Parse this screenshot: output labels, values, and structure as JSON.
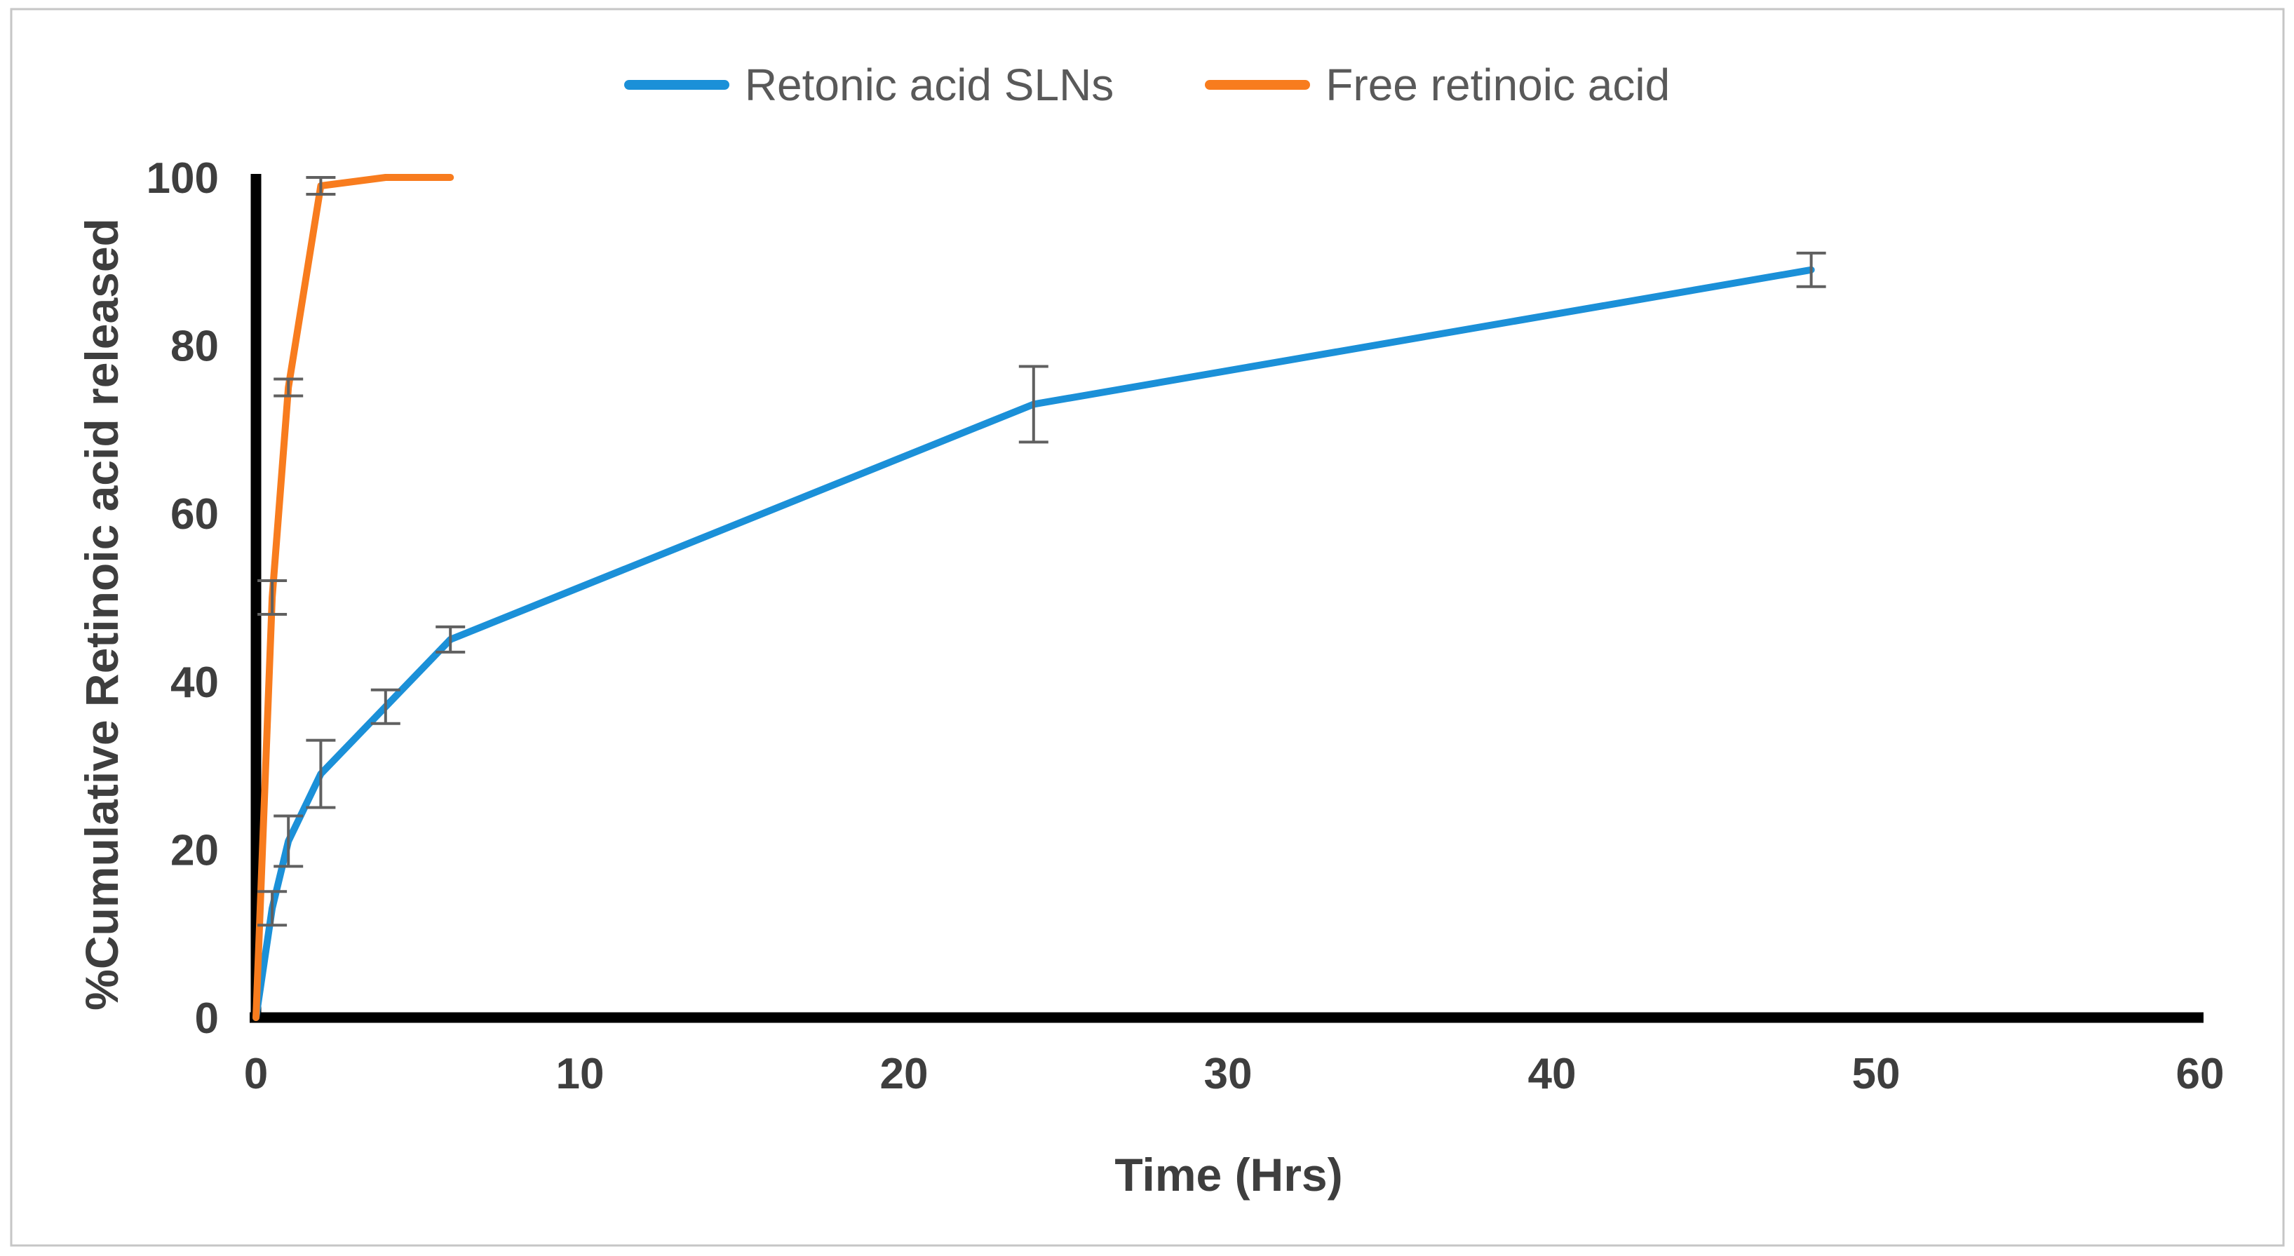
{
  "figure": {
    "background": "#ffffff",
    "border_color": "#c6c6c6"
  },
  "legend": {
    "position": "top-center",
    "items": [
      {
        "label": "Retonic acid SLNs",
        "color": "#1b90d8",
        "marker": "line"
      },
      {
        "label": "Free retinoic acid",
        "color": "#f87c1e",
        "marker": "line"
      }
    ]
  },
  "chart_data": {
    "type": "line",
    "title": "",
    "xlabel": "Time (Hrs)",
    "ylabel": "%Cumulative Retinoic acid released",
    "xlim": [
      0,
      60
    ],
    "ylim": [
      0,
      100
    ],
    "x_ticks": [
      0,
      10,
      20,
      30,
      40,
      50,
      60
    ],
    "y_ticks": [
      0,
      20,
      40,
      60,
      80,
      100
    ],
    "grid": false,
    "legend_position": "top-center",
    "axis_color": "#000000",
    "tick_label_color": "#3e3e3e",
    "error_bar_color": "#606060",
    "series": [
      {
        "name": "Retonic acid SLNs",
        "color": "#1b90d8",
        "x": [
          0,
          0.5,
          1,
          2,
          4,
          6,
          24,
          48
        ],
        "y": [
          0,
          13,
          21,
          29,
          37,
          45,
          73,
          89
        ],
        "y_err": [
          0,
          2,
          3,
          4,
          2,
          1.5,
          4.5,
          2
        ]
      },
      {
        "name": "Free retinoic acid",
        "color": "#f87c1e",
        "x": [
          0,
          0.5,
          1,
          2,
          4,
          6
        ],
        "y": [
          0,
          50,
          75,
          99,
          100,
          100
        ],
        "y_err": [
          0,
          2,
          1,
          1,
          0,
          0
        ]
      }
    ]
  }
}
